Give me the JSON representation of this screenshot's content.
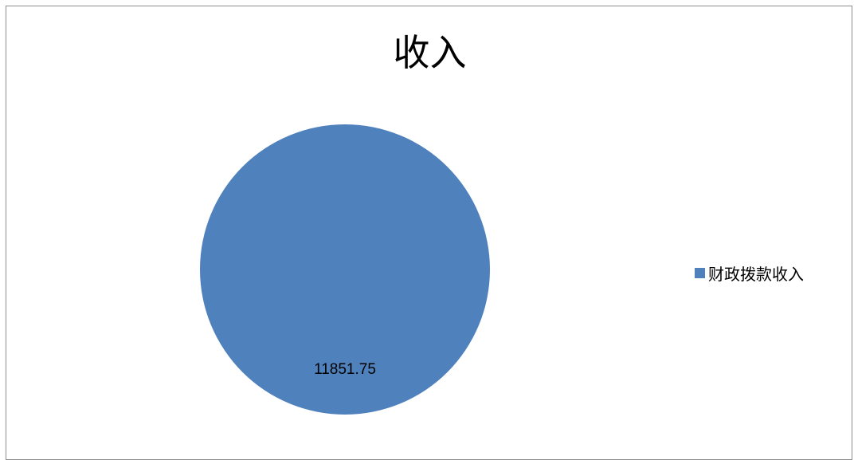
{
  "chart_data": {
    "type": "pie",
    "title": "收入",
    "categories": [
      "财政拨款收入"
    ],
    "values": [
      11851.75
    ],
    "data_labels": [
      "11851.75"
    ],
    "colors": [
      "#4f81bd"
    ],
    "legend_position": "right"
  }
}
